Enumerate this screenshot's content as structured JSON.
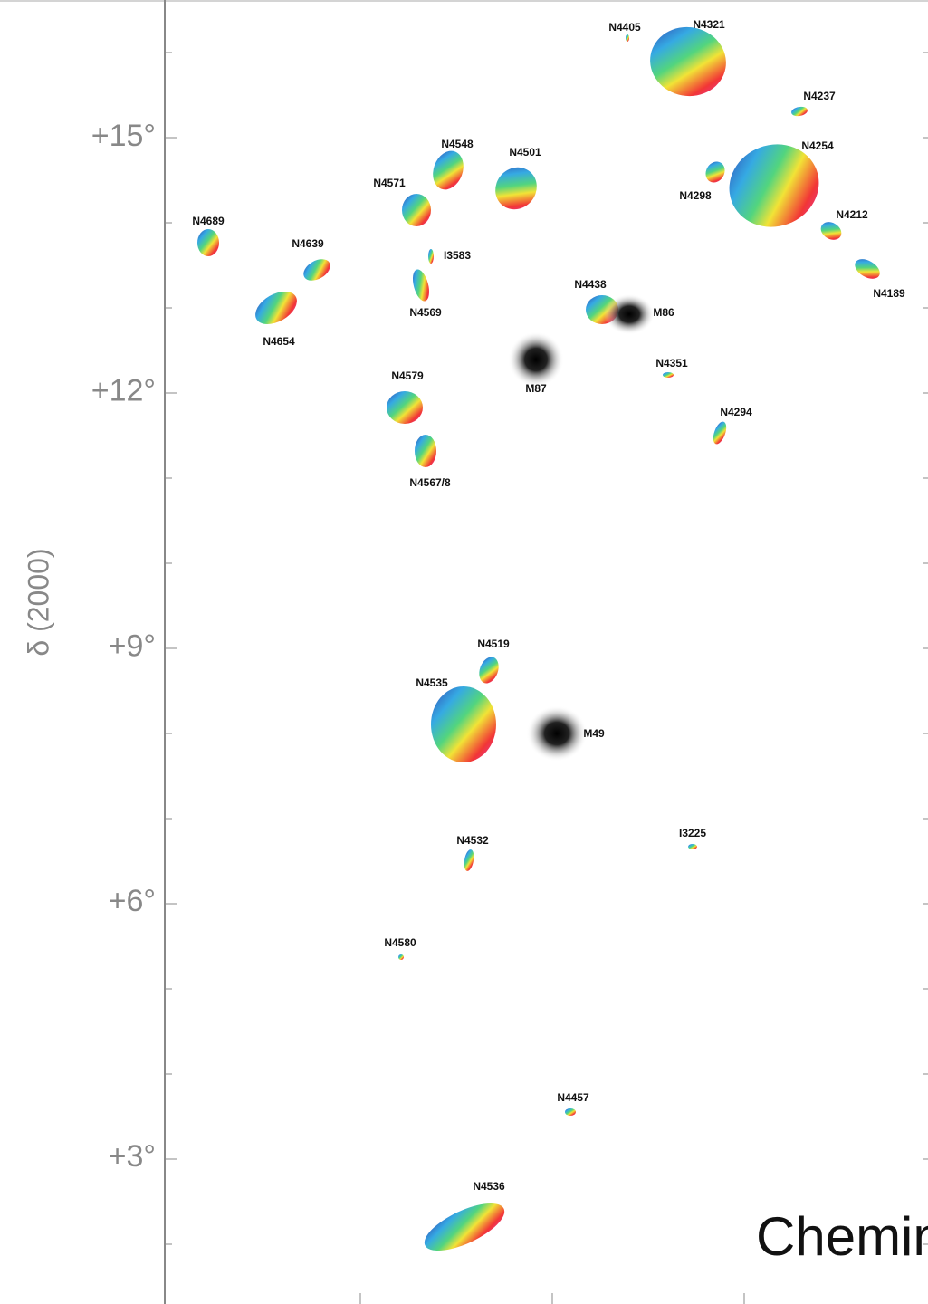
{
  "axis": {
    "label": "δ (2000)",
    "ticks": [
      "+15°",
      "+12°",
      "+9°",
      "+6°",
      "+3°"
    ]
  },
  "galaxies": [
    "N4405",
    "N4321",
    "N4237",
    "N4254",
    "N4298",
    "N4212",
    "N4189",
    "N4548",
    "N4501",
    "N4571",
    "N4689",
    "N4639",
    "I3583",
    "N4654",
    "N4569",
    "N4438",
    "M86",
    "M87",
    "N4351",
    "N4579",
    "N4294",
    "N4567/8",
    "N4519",
    "N4535",
    "M49",
    "N4532",
    "I3225",
    "N4580",
    "N4457",
    "N4536"
  ],
  "credit": "Chemin"
}
